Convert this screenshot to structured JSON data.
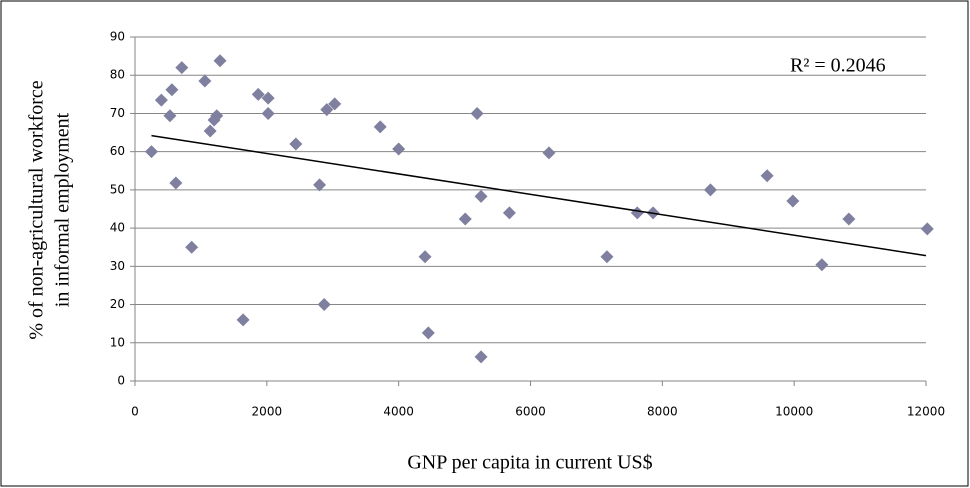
{
  "chart_data": {
    "type": "scatter",
    "x_label": "GNP per capita in current US$",
    "y_label": [
      "% of non-agricultural workforce",
      "in informal employment"
    ],
    "annotation": "R² = 0.2046",
    "color": "#7f7f9f",
    "grid": true,
    "xlim": [
      0,
      12000
    ],
    "xticks": [
      0,
      2000,
      4000,
      6000,
      8000,
      10000,
      12000
    ],
    "ylim": [
      0,
      90
    ],
    "yticks": [
      0,
      10,
      20,
      30,
      40,
      50,
      60,
      70,
      80,
      90
    ],
    "x": [
      250,
      400,
      530,
      560,
      620,
      710,
      860,
      1060,
      1140,
      1200,
      1240,
      1290,
      1640,
      1870,
      2020,
      2020,
      2440,
      2800,
      2870,
      2910,
      3030,
      3720,
      4000,
      4400,
      4450,
      5010,
      5190,
      5250,
      5250,
      5680,
      6280,
      7160,
      7620,
      7860,
      8730,
      9590,
      9980,
      10420,
      10830,
      12020
    ],
    "values": [
      60,
      73.5,
      69.4,
      76.2,
      51.8,
      82,
      35,
      78.5,
      65.4,
      68.3,
      69.4,
      83.8,
      16,
      75,
      74,
      70,
      62,
      51.3,
      20,
      71,
      72.5,
      66.5,
      60.7,
      32.5,
      12.6,
      42.4,
      70,
      48.3,
      6.3,
      44,
      59.7,
      32.5,
      44,
      44,
      50,
      53.7,
      47.1,
      30.4,
      42.4,
      39.8
    ],
    "trendline": {
      "x": [
        250,
        12000
      ],
      "y": [
        64.2,
        32.8
      ],
      "color": "#000000"
    }
  }
}
